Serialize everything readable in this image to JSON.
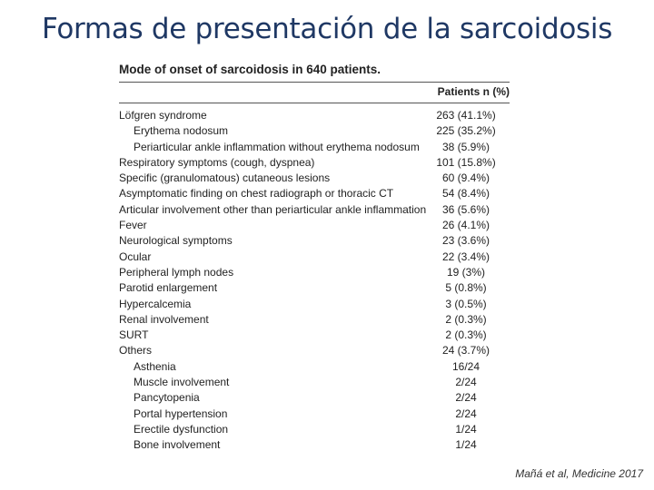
{
  "slide": {
    "title": "Formas de presentación de la sarcoidosis",
    "citation": "Mañá et al, Medicine 2017"
  },
  "table": {
    "caption": "Mode of onset of sarcoidosis in 640 patients.",
    "column_header": "Patients n (%)",
    "rows": [
      {
        "label": "Löfgren syndrome",
        "value": "263 (41.1%)",
        "indent": false
      },
      {
        "label": "Erythema nodosum",
        "value": "225 (35.2%)",
        "indent": true
      },
      {
        "label": "Periarticular ankle inflammation without erythema nodosum",
        "value": "38 (5.9%)",
        "indent": true
      },
      {
        "label": "Respiratory symptoms (cough, dyspnea)",
        "value": "101 (15.8%)",
        "indent": false
      },
      {
        "label": "Specific (granulomatous) cutaneous lesions",
        "value": "60 (9.4%)",
        "indent": false
      },
      {
        "label": "Asymptomatic finding on chest radiograph or thoracic CT",
        "value": "54 (8.4%)",
        "indent": false
      },
      {
        "label": "Articular involvement other than periarticular ankle inflammation",
        "value": "36 (5.6%)",
        "indent": false
      },
      {
        "label": "Fever",
        "value": "26 (4.1%)",
        "indent": false
      },
      {
        "label": "Neurological symptoms",
        "value": "23 (3.6%)",
        "indent": false
      },
      {
        "label": "Ocular",
        "value": "22 (3.4%)",
        "indent": false
      },
      {
        "label": "Peripheral lymph nodes",
        "value": "19 (3%)",
        "indent": false
      },
      {
        "label": "Parotid enlargement",
        "value": "5 (0.8%)",
        "indent": false
      },
      {
        "label": "Hypercalcemia",
        "value": "3 (0.5%)",
        "indent": false
      },
      {
        "label": "Renal involvement",
        "value": "2 (0.3%)",
        "indent": false
      },
      {
        "label": "SURT",
        "value": "2 (0.3%)",
        "indent": false
      },
      {
        "label": "Others",
        "value": "24 (3.7%)",
        "indent": false
      },
      {
        "label": "Asthenia",
        "value": "16/24",
        "indent": true
      },
      {
        "label": "Muscle involvement",
        "value": "2/24",
        "indent": true
      },
      {
        "label": "Pancytopenia",
        "value": "2/24",
        "indent": true
      },
      {
        "label": "Portal hypertension",
        "value": "2/24",
        "indent": true
      },
      {
        "label": "Erectile dysfunction",
        "value": "1/24",
        "indent": true
      },
      {
        "label": "Bone involvement",
        "value": "1/24",
        "indent": true
      }
    ]
  }
}
